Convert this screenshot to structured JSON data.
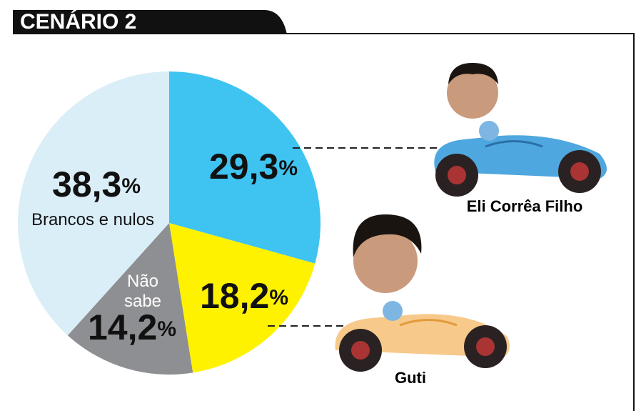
{
  "chart_data": {
    "type": "pie",
    "title": "CENÁRIO 2",
    "categories": [
      "Eli Corrêa Filho",
      "Guti",
      "Não sabe",
      "Brancos e nulos"
    ],
    "values": [
      29.3,
      18.2,
      14.2,
      38.3
    ],
    "value_labels": [
      "29,3%",
      "18,2%",
      "14,2%",
      "38,3%"
    ],
    "colors": [
      "#3fc3f0",
      "#fff200",
      "#8e8f92",
      "#daeef7"
    ]
  }
}
